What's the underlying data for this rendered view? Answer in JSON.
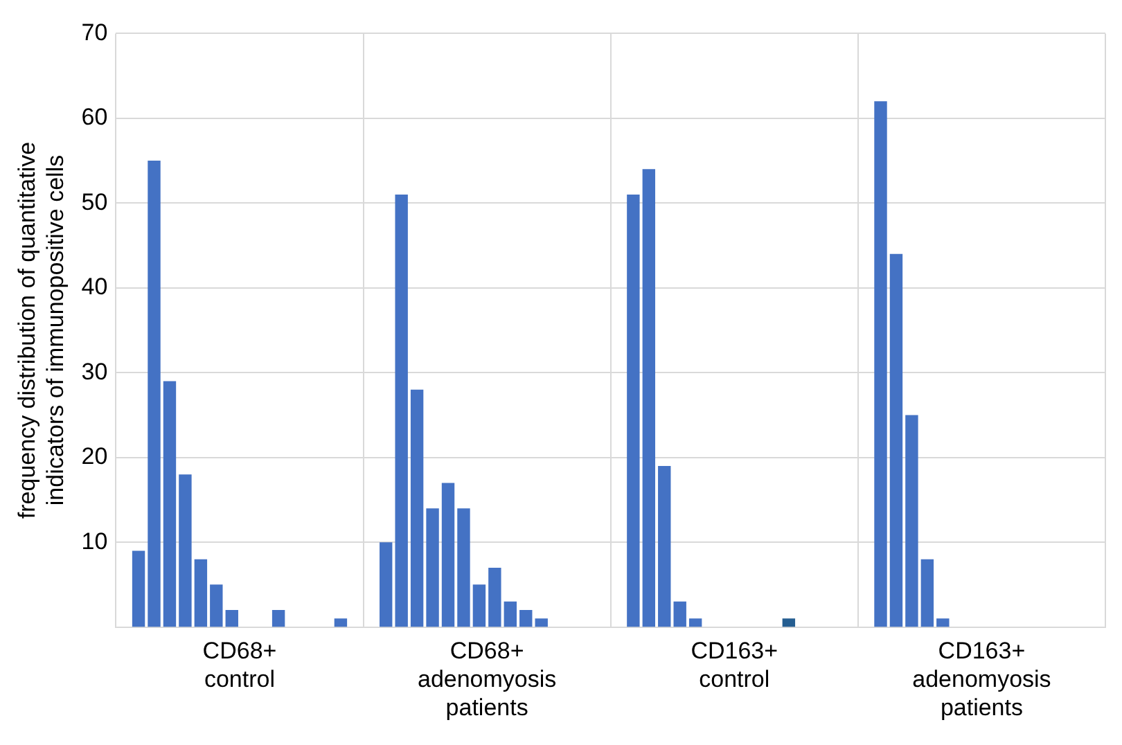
{
  "chart_data": {
    "type": "bar",
    "ylabel": "frequency distribution of quantitative indicators of immunopositive cells",
    "categories": [
      "CD68+ control",
      "CD68+ adenomyosis patients",
      "CD163+ control",
      "CD163+ adenomyosis patients"
    ],
    "series": [
      {
        "color": "#4472c4",
        "values": [
          9,
          10,
          51,
          62
        ]
      },
      {
        "color": "#4472c4",
        "values": [
          55,
          51,
          54,
          44
        ]
      },
      {
        "color": "#4472c4",
        "values": [
          29,
          28,
          19,
          25
        ]
      },
      {
        "color": "#4472c4",
        "values": [
          18,
          14,
          3,
          8
        ]
      },
      {
        "color": "#4472c4",
        "values": [
          8,
          17,
          1,
          1
        ]
      },
      {
        "color": "#4472c4",
        "values": [
          5,
          14,
          null,
          null
        ]
      },
      {
        "color": "#4472c4",
        "values": [
          2,
          5,
          null,
          null
        ]
      },
      {
        "color": "#4472c4",
        "values": [
          null,
          7,
          null,
          null
        ]
      },
      {
        "color": "#4472c4",
        "values": [
          null,
          3,
          null,
          null
        ]
      },
      {
        "color": "#4472c4",
        "values": [
          2,
          2,
          null,
          null
        ]
      },
      {
        "color": "#4472c4",
        "colors": [
          "#4472c4",
          "#4472c4",
          "#255e91",
          "#4472c4"
        ],
        "values": [
          null,
          1,
          1,
          null
        ]
      },
      {
        "color": "#4472c4",
        "values": [
          null,
          null,
          null,
          null
        ]
      },
      {
        "color": "#4472c4",
        "values": [
          null,
          null,
          null,
          null
        ]
      },
      {
        "color": "#4472c4",
        "values": [
          1,
          null,
          null,
          null
        ]
      }
    ],
    "ylim": [
      0,
      70
    ],
    "yticks": [
      10,
      20,
      30,
      40,
      50,
      60,
      70
    ],
    "grid": true,
    "legend": false
  }
}
